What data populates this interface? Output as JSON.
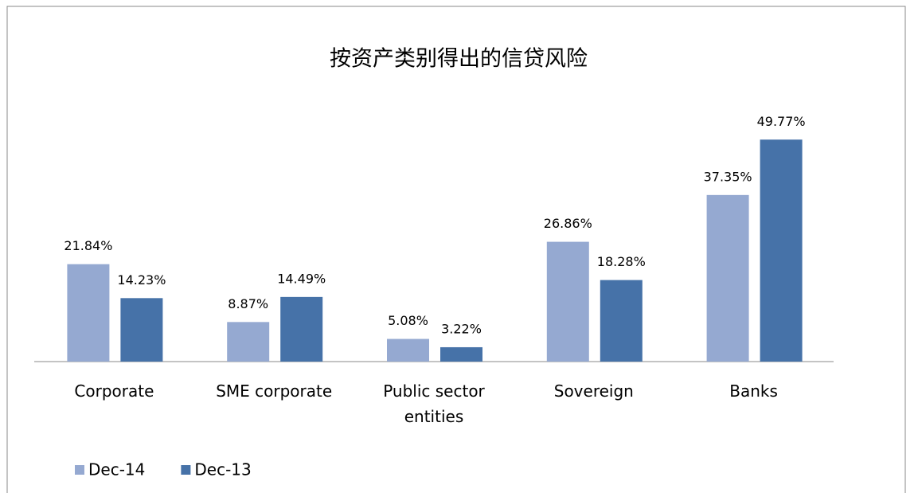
{
  "chart_data": {
    "type": "bar",
    "title": "按资产类别得出的信贷风险",
    "categories": [
      "Corporate",
      "SME corporate",
      "Public sector entities",
      "Sovereign",
      "Banks"
    ],
    "series": [
      {
        "name": "Dec-14",
        "color": "#95a9d1",
        "values": [
          21.84,
          8.87,
          5.08,
          26.86,
          37.35
        ],
        "value_labels": [
          "21.84%",
          "8.87%",
          "5.08%",
          "26.86%",
          "37.35%"
        ]
      },
      {
        "name": "Dec-13",
        "color": "#4672a8",
        "values": [
          14.23,
          14.49,
          3.22,
          18.28,
          49.77
        ],
        "value_labels": [
          "14.23%",
          "14.49%",
          "3.22%",
          "18.28%",
          "49.77%"
        ]
      }
    ],
    "legend": "bottom-left"
  }
}
